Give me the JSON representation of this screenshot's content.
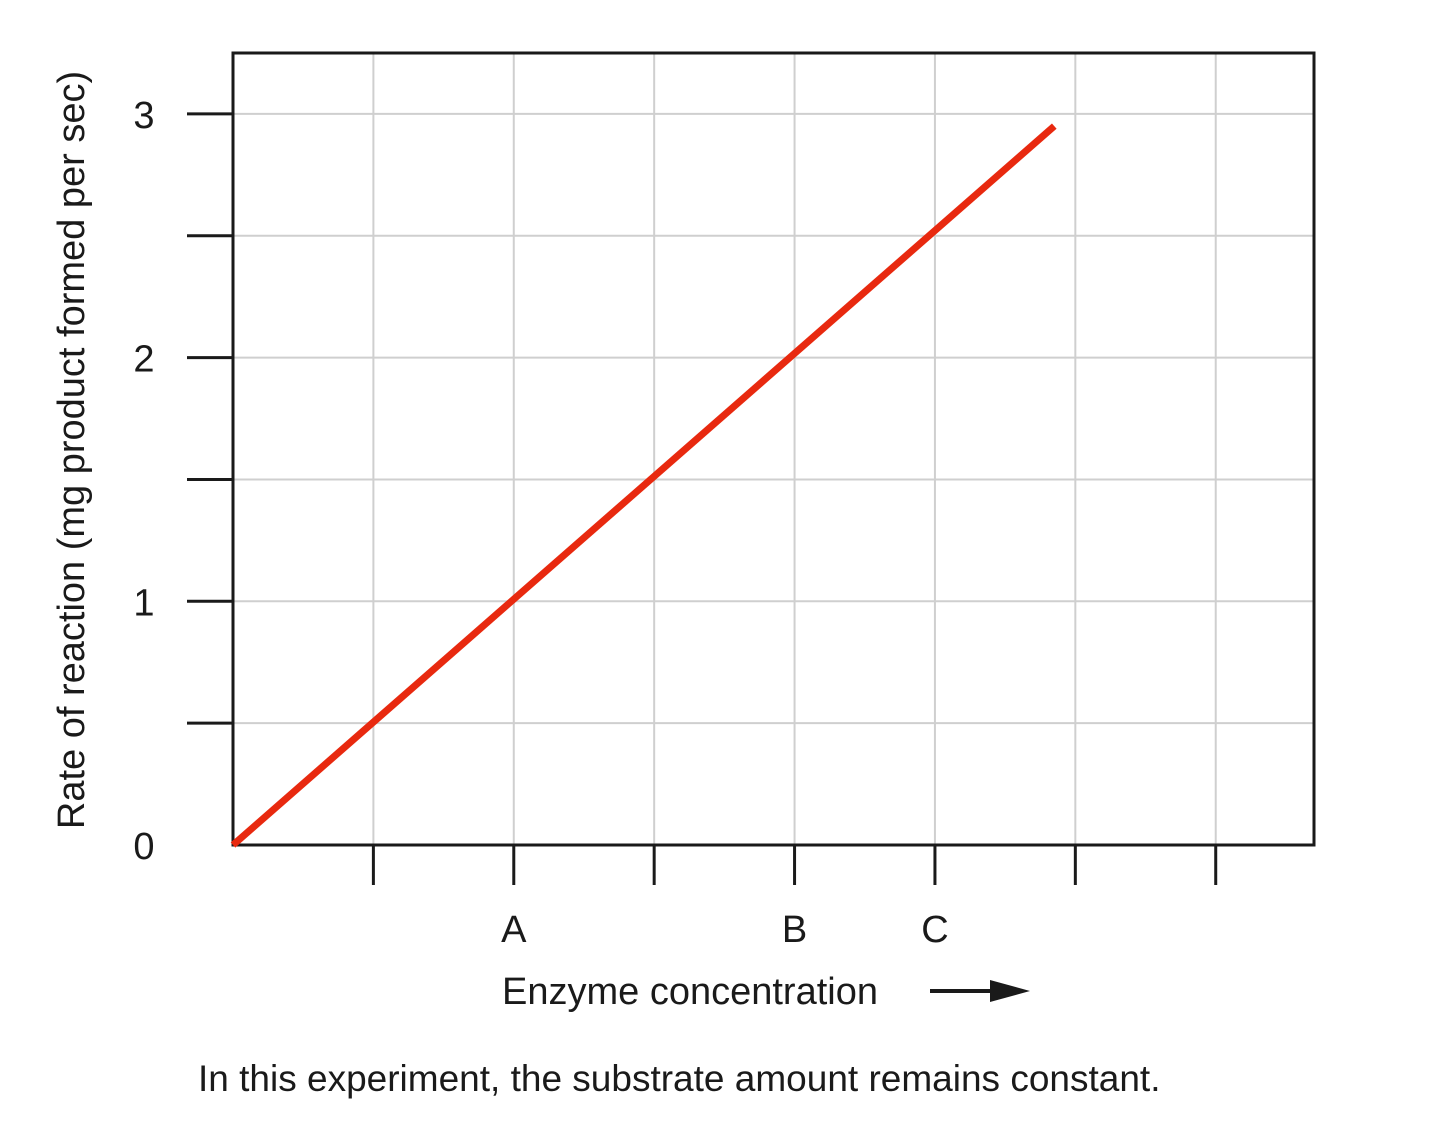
{
  "chart_data": {
    "type": "line",
    "xlabel": "Enzyme concentration",
    "ylabel": "Rate of reaction (mg product formed per sec)",
    "xlim": [
      0,
      7.7
    ],
    "ylim": [
      0,
      3.25
    ],
    "y_ticks": [
      0,
      0.5,
      1,
      1.5,
      2,
      2.5,
      3
    ],
    "y_tick_labels": [
      {
        "value": 0,
        "label": "0"
      },
      {
        "value": 1,
        "label": "1"
      },
      {
        "value": 2,
        "label": "2"
      },
      {
        "value": 3,
        "label": "3"
      }
    ],
    "x_ticks": [
      1,
      2,
      3,
      4,
      5,
      6,
      7
    ],
    "x_tick_labels": [
      {
        "value": 2,
        "label": "A"
      },
      {
        "value": 4,
        "label": "B"
      },
      {
        "value": 5,
        "label": "C"
      }
    ],
    "grid": true,
    "series": [
      {
        "color": "#e8290f",
        "x": [
          0,
          5.85
        ],
        "y": [
          0,
          2.95
        ]
      }
    ]
  },
  "caption": "In this experiment, the substrate amount remains constant."
}
